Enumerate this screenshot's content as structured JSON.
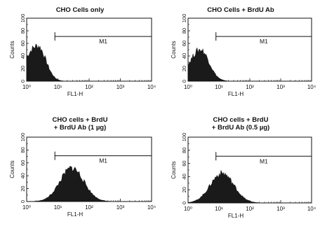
{
  "chart_data": [
    {
      "type": "histogram",
      "title_lines": [
        "CHO Cells only"
      ],
      "xlabel": "FL1-H",
      "ylabel": "Counts",
      "x_scale": "log",
      "xlim": [
        1,
        10000
      ],
      "x_ticks": [
        "10⁰",
        "10¹",
        "10²",
        "10³",
        "10⁴"
      ],
      "ylim": [
        0,
        100
      ],
      "y_ticks": [
        "0",
        "20",
        "40",
        "60",
        "80",
        "100"
      ],
      "gate": {
        "label": "M1",
        "from": 8,
        "to": 10000,
        "level": 71
      },
      "fill_color": "#1a1a1a",
      "histogram": {
        "peak_log10": 0.35,
        "sigma_left": 0.4,
        "sigma_right": 0.26,
        "peak_count": 56
      }
    },
    {
      "type": "histogram",
      "title_lines": [
        "CHO Cells + BrdU Ab"
      ],
      "xlabel": "FL1-H",
      "ylabel": "Counts",
      "x_scale": "log",
      "xlim": [
        1,
        10000
      ],
      "x_ticks": [
        "10⁰",
        "10¹",
        "10²",
        "10³",
        "10⁴"
      ],
      "ylim": [
        0,
        100
      ],
      "y_ticks": [
        "0",
        "20",
        "40",
        "60",
        "80",
        "100"
      ],
      "gate": {
        "label": "M1",
        "from": 8,
        "to": 10000,
        "level": 71
      },
      "fill_color": "#1a1a1a",
      "histogram": {
        "peak_log10": 0.4,
        "sigma_left": 0.35,
        "sigma_right": 0.28,
        "peak_count": 50
      }
    },
    {
      "type": "histogram",
      "title_lines": [
        "CHO cells + BrdU",
        "+ BrdU Ab (1 µg)"
      ],
      "xlabel": "FL1-H",
      "ylabel": "Counts",
      "x_scale": "log",
      "xlim": [
        1,
        10000
      ],
      "x_ticks": [
        "10⁰",
        "10¹",
        "10²",
        "10³",
        "10⁴"
      ],
      "ylim": [
        0,
        100
      ],
      "y_ticks": [
        "0",
        "20",
        "40",
        "60",
        "80",
        "100"
      ],
      "gate": {
        "label": "M1",
        "from": 8,
        "to": 10000,
        "level": 71
      },
      "fill_color": "#1a1a1a",
      "histogram": {
        "peak_log10": 1.45,
        "sigma_left": 0.38,
        "sigma_right": 0.38,
        "peak_count": 52
      }
    },
    {
      "type": "histogram",
      "title_lines": [
        "CHO cells + BrdU",
        "+ BrdU Ab (0.5 µg)"
      ],
      "xlabel": "FL1-H",
      "ylabel": "Counts",
      "x_scale": "log",
      "xlim": [
        1,
        10000
      ],
      "x_ticks": [
        "10⁰",
        "10¹",
        "10²",
        "10³",
        "10⁴"
      ],
      "ylim": [
        0,
        100
      ],
      "y_ticks": [
        "0",
        "20",
        "40",
        "60",
        "80",
        "100"
      ],
      "gate": {
        "label": "M1",
        "from": 8,
        "to": 10000,
        "level": 71
      },
      "fill_color": "#1a1a1a",
      "histogram": {
        "peak_log10": 1.1,
        "sigma_left": 0.38,
        "sigma_right": 0.38,
        "peak_count": 45
      }
    }
  ]
}
